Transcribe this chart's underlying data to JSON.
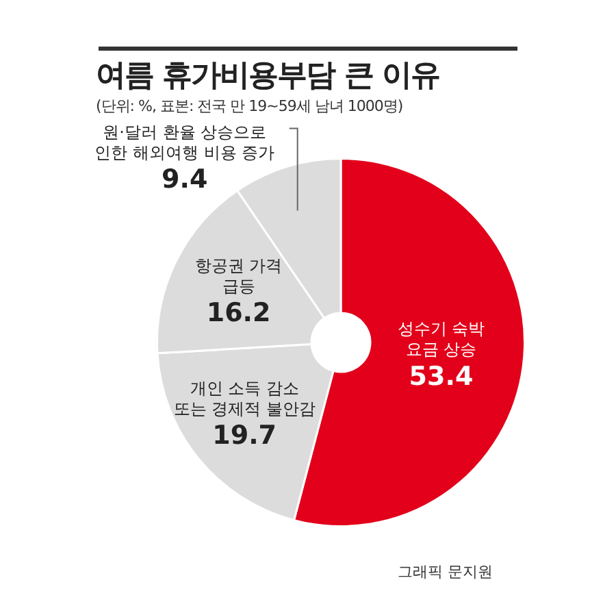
{
  "chart_data": {
    "type": "donut",
    "title": "여름 휴가비용부담 큰 이유",
    "subtitle": "(단위: %, 표본: 전국 만 19~59세 남녀 1000명)",
    "categories": [
      "성수기 숙박\n요금 상승",
      "개인 소득 감소\n또는 경제적 불안감",
      "항공권 가격\n급등",
      "원·달러 환율 상승으로\n인한 해외여행 비용 증가"
    ],
    "values": [
      53.4,
      19.7,
      16.2,
      9.4
    ],
    "colors": [
      "#e2001a",
      "#dcdcdc",
      "#dcdcdc",
      "#dcdcdc"
    ],
    "data_labels": true,
    "legend": false,
    "annotations": [
      "그래픽 문지원"
    ]
  }
}
